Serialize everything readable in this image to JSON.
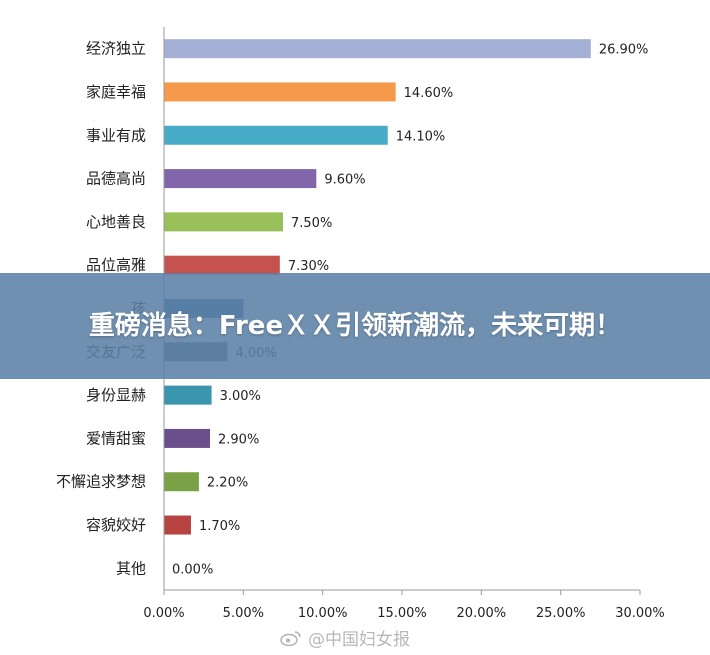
{
  "chart_data": {
    "type": "bar",
    "orientation": "horizontal",
    "categories": [
      "经济独立",
      "家庭幸福",
      "事业有成",
      "品德高尚",
      "心地善良",
      "品位高雅",
      "孩",
      "交友广泛",
      "身份显赫",
      "爱情甜蜜",
      "不懈追求梦想",
      "容貌姣好",
      "其他"
    ],
    "values": [
      26.9,
      14.6,
      14.1,
      9.6,
      7.5,
      7.3,
      5.0,
      4.0,
      3.0,
      2.9,
      2.2,
      1.7,
      0.0
    ],
    "value_labels": [
      "26.90%",
      "14.60%",
      "14.10%",
      "9.60%",
      "7.50%",
      "7.30%",
      "",
      "4.00%",
      "3.00%",
      "2.90%",
      "2.20%",
      "1.70%",
      "0.00%"
    ],
    "colors": [
      "#a5b0d6",
      "#f59a4b",
      "#46acc8",
      "#8167a9",
      "#99c058",
      "#c65250",
      "#3f72a8",
      "#646b74",
      "#3a95ae",
      "#6b4f8d",
      "#7ba147",
      "#b84441",
      "#888888"
    ],
    "xlim": [
      0,
      30
    ],
    "x_ticks": [
      "0.00%",
      "5.00%",
      "10.00%",
      "15.00%",
      "20.00%",
      "25.00%",
      "30.00%"
    ],
    "grid": false,
    "legend": "none"
  },
  "banner": {
    "headline": "重磅消息：FreeＸＸ引领新潮流，未来可期！"
  },
  "watermark": {
    "text": "@中国妇女报",
    "icon": "weibo-icon"
  }
}
